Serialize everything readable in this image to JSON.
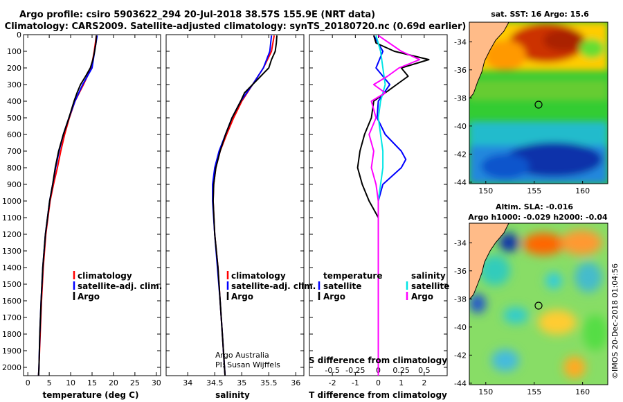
{
  "title_line1": "Argo profile: csiro 5903622_294 20-Jul-2018 38.57S 155.9E (NRT data)",
  "title_line2": "Climatology: CARS2009. Satellite-adjusted climatology: synTS_20180720.nc (0.69d earlier)",
  "depth_ticks": [
    "0",
    "100",
    "200",
    "300",
    "400",
    "500",
    "600",
    "700",
    "800",
    "900",
    "1000",
    "1100",
    "1200",
    "1300",
    "1400",
    "1500",
    "1600",
    "1700",
    "1800",
    "1900",
    "2000"
  ],
  "colors": {
    "climatology": "#ff0000",
    "satellite": "#0000ff",
    "argo": "#000000",
    "sal_satellite": "#00e5e5",
    "sal_argo": "#ff00ff",
    "land": "#ffbb88"
  },
  "credit": {
    "line1": "Argo Australia",
    "line2": "PI: Susan Wijffels"
  },
  "imos_stamp": "©IMOS 20-Dec-2018 01:04:56",
  "sst_map": {
    "title": "sat. SST: 16 Argo: 15.6",
    "lat_ticks": [
      "-34",
      "-36",
      "-38",
      "-40",
      "-42",
      "-44"
    ],
    "lon_ticks": [
      "150",
      "155",
      "160"
    ]
  },
  "sla_map": {
    "title1": "Altim. SLA: -0.016",
    "title2": "Argo h1000: -0.029 h2000: -0.04",
    "lat_ticks": [
      "-34",
      "-36",
      "-38",
      "-40",
      "-42",
      "-44"
    ],
    "lon_ticks": [
      "150",
      "155",
      "160"
    ]
  },
  "chart_data": [
    {
      "type": "line",
      "panel": "temperature",
      "xlabel": "temperature (deg C)",
      "ylabel": "depth",
      "xlim": [
        -1,
        31
      ],
      "ylim": [
        2050,
        0
      ],
      "x_ticks": [
        "0",
        "5",
        "10",
        "15",
        "20",
        "25",
        "30"
      ],
      "x_tick_values": [
        0,
        5,
        10,
        15,
        20,
        25,
        30
      ],
      "legend": [
        "climatology",
        "satellite-adj. clim.",
        "Argo"
      ],
      "series": [
        {
          "name": "climatology",
          "depth": [
            5,
            100,
            200,
            300,
            400,
            500,
            600,
            700,
            800,
            900,
            1000,
            1200,
            1400,
            1600,
            1800,
            2000,
            2050
          ],
          "values": [
            16.0,
            15.5,
            14.8,
            13.0,
            11.0,
            9.7,
            8.6,
            7.7,
            6.9,
            6.0,
            5.2,
            4.2,
            3.6,
            3.2,
            2.9,
            2.6,
            2.5
          ]
        },
        {
          "name": "satellite-adj. clim.",
          "depth": [
            5,
            100,
            200,
            300,
            400,
            500,
            600,
            700,
            800,
            900,
            1000,
            1200,
            1400,
            1600,
            1800,
            2000,
            2050
          ],
          "values": [
            16.2,
            15.6,
            15.0,
            12.8,
            11.0,
            9.6,
            8.3,
            7.3,
            6.5,
            5.8,
            5.1,
            4.1,
            3.5,
            3.1,
            2.8,
            2.6,
            2.5
          ]
        },
        {
          "name": "Argo",
          "depth": [
            5,
            50,
            100,
            150,
            200,
            250,
            300,
            350,
            400,
            500,
            600,
            700,
            800,
            900,
            1000,
            1200,
            1400,
            1600,
            1800,
            2000,
            2050
          ],
          "values": [
            16.0,
            15.9,
            15.6,
            15.2,
            14.6,
            13.5,
            12.3,
            11.5,
            10.8,
            9.6,
            8.3,
            7.2,
            6.4,
            5.8,
            5.1,
            4.1,
            3.5,
            3.1,
            2.8,
            2.6,
            2.5
          ]
        }
      ]
    },
    {
      "type": "line",
      "panel": "salinity",
      "xlabel": "salinity",
      "ylabel": "depth",
      "xlim": [
        33.6,
        36.15
      ],
      "ylim": [
        2050,
        0
      ],
      "x_ticks": [
        "34",
        "34.5",
        "35",
        "35.5",
        "36"
      ],
      "x_tick_values": [
        34,
        34.5,
        35,
        35.5,
        36
      ],
      "legend": [
        "climatology",
        "satellite-adj. clim.",
        "Argo"
      ],
      "series": [
        {
          "name": "climatology",
          "depth": [
            5,
            100,
            200,
            300,
            400,
            500,
            600,
            700,
            800,
            900,
            1000,
            1200,
            1400,
            1600,
            1800,
            2000,
            2050
          ],
          "values": [
            35.6,
            35.55,
            35.4,
            35.2,
            35.0,
            34.85,
            34.72,
            34.6,
            34.52,
            34.48,
            34.47,
            34.5,
            34.56,
            34.6,
            34.64,
            34.68,
            34.69
          ]
        },
        {
          "name": "satellite-adj. clim.",
          "depth": [
            5,
            100,
            200,
            300,
            400,
            500,
            600,
            700,
            800,
            900,
            1000,
            1200,
            1400,
            1600,
            1800,
            2000,
            2050
          ],
          "values": [
            35.55,
            35.52,
            35.4,
            35.2,
            34.98,
            34.82,
            34.7,
            34.58,
            34.5,
            34.46,
            34.46,
            34.5,
            34.55,
            34.6,
            34.64,
            34.68,
            34.69
          ]
        },
        {
          "name": "Argo",
          "depth": [
            5,
            50,
            100,
            150,
            200,
            250,
            300,
            350,
            400,
            500,
            600,
            700,
            800,
            900,
            1000,
            1200,
            1400,
            1600,
            1800,
            2000,
            2050
          ],
          "values": [
            35.65,
            35.64,
            35.62,
            35.55,
            35.5,
            35.35,
            35.2,
            35.05,
            34.98,
            34.82,
            34.7,
            34.6,
            34.52,
            34.48,
            34.47,
            34.5,
            34.56,
            34.6,
            34.64,
            34.68,
            34.69
          ]
        }
      ]
    },
    {
      "type": "line",
      "panel": "difference",
      "xlabel": "T difference from climatology",
      "xlabel2": "S difference from climatology",
      "ylabel": "depth",
      "xlim": [
        -3,
        3
      ],
      "ylim": [
        2050,
        0
      ],
      "x_ticks": [
        "-2",
        "-1",
        "0",
        "1",
        "2"
      ],
      "x_tick_values": [
        -2,
        -1,
        0,
        1,
        2
      ],
      "x2_ticks": [
        "-0.5",
        "-0.25",
        "0",
        "0.25",
        "0.5"
      ],
      "x2_tick_positions": [
        -2,
        -1,
        0,
        1,
        2
      ],
      "legend_temperature_title": "temperature",
      "legend_salinity_title": "salinity",
      "legend_temperature": [
        "satellite",
        "Argo"
      ],
      "legend_salinity": [
        "satellite",
        "Argo"
      ],
      "series": [
        {
          "name": "T satellite",
          "depth": [
            5,
            100,
            200,
            300,
            400,
            500,
            600,
            700,
            750,
            800,
            850,
            900,
            1000,
            1100,
            1200,
            1500,
            2050
          ],
          "values": [
            -0.2,
            0.2,
            -0.1,
            0.5,
            0.0,
            -0.05,
            0.3,
            1.0,
            1.2,
            1.0,
            0.6,
            0.2,
            0.0,
            0.0,
            0.0,
            0.0,
            0.0
          ]
        },
        {
          "name": "T Argo",
          "depth": [
            5,
            50,
            100,
            150,
            200,
            250,
            300,
            350,
            400,
            500,
            600,
            700,
            800,
            900,
            1000,
            1050,
            1100,
            1500,
            2050
          ],
          "values": [
            -0.2,
            -0.1,
            0.7,
            2.2,
            1.0,
            1.3,
            0.8,
            0.3,
            -0.2,
            -0.3,
            -0.6,
            -0.8,
            -0.9,
            -0.7,
            -0.4,
            -0.2,
            0.0,
            0.0,
            0.0
          ]
        },
        {
          "name": "S satellite",
          "depth": [
            5,
            100,
            200,
            300,
            400,
            500,
            600,
            700,
            800,
            900,
            1000,
            1100,
            1200,
            1500,
            2050
          ],
          "values": [
            -0.1,
            0.1,
            0.2,
            0.3,
            0.1,
            0.0,
            0.1,
            0.2,
            0.2,
            0.1,
            0.0,
            0.0,
            0.0,
            0.0,
            0.0
          ]
        },
        {
          "name": "S Argo",
          "depth": [
            5,
            100,
            150,
            200,
            250,
            300,
            350,
            400,
            500,
            600,
            700,
            800,
            900,
            1000,
            1100,
            1500,
            2050
          ],
          "values": [
            0.0,
            1.0,
            1.8,
            0.9,
            0.4,
            -0.2,
            0.3,
            -0.3,
            -0.1,
            -0.4,
            -0.2,
            -0.3,
            -0.1,
            0.0,
            0.0,
            0.0,
            0.0
          ]
        }
      ]
    }
  ]
}
